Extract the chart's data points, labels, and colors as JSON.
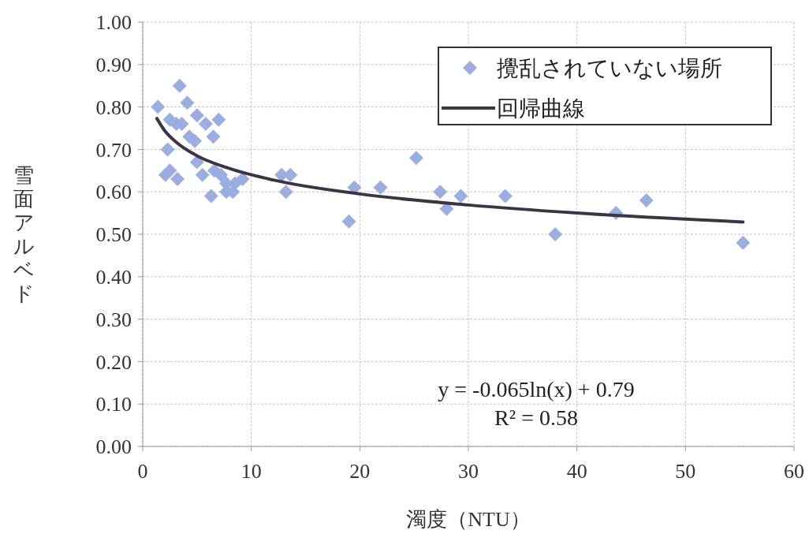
{
  "chart_data": {
    "type": "scatter",
    "xlabel": "濁度（NTU）",
    "ylabel": "雪面アルベド",
    "xlim": [
      0,
      60
    ],
    "xticks": [
      0,
      10,
      20,
      30,
      40,
      50,
      60
    ],
    "ylim": [
      0,
      1
    ],
    "yticks": [
      {
        "value": 0,
        "label": "0.00"
      },
      {
        "value": 0.1,
        "label": "0.10"
      },
      {
        "value": 0.2,
        "label": "0.20"
      },
      {
        "value": 0.3,
        "label": "0.30"
      },
      {
        "value": 0.4,
        "label": "0.40"
      },
      {
        "value": 0.5,
        "label": "0.50"
      },
      {
        "value": 0.6,
        "label": "0.60"
      },
      {
        "value": 0.7,
        "label": "0.70"
      },
      {
        "value": 0.8,
        "label": "0.80"
      },
      {
        "value": 0.9,
        "label": "0.90"
      },
      {
        "value": 1,
        "label": "1.00"
      }
    ],
    "grid": true,
    "legend": "top right",
    "series": [
      {
        "name": "攪乱されていない場所",
        "color": "#9aaee0",
        "marker": "diamond",
        "x": [
          1.4,
          3.4,
          4.1,
          2.5,
          3.1,
          3.6,
          5.0,
          5.8,
          6.5,
          7.0,
          2.3,
          4.3,
          4.8,
          5.0,
          2.5,
          2.1,
          3.2,
          5.5,
          6.6,
          7.2,
          7.7,
          8.5,
          9.2,
          6.3,
          7.7,
          8.3,
          12.8,
          13.6,
          13.2,
          19.5,
          19.0,
          21.9,
          25.2,
          27.4,
          28.0,
          29.3,
          33.4,
          38.0,
          43.6,
          46.4,
          55.3
        ],
        "values": [
          0.8,
          0.85,
          0.81,
          0.77,
          0.76,
          0.76,
          0.78,
          0.76,
          0.73,
          0.77,
          0.7,
          0.73,
          0.72,
          0.67,
          0.65,
          0.64,
          0.63,
          0.64,
          0.65,
          0.64,
          0.62,
          0.62,
          0.63,
          0.59,
          0.6,
          0.6,
          0.64,
          0.64,
          0.6,
          0.61,
          0.53,
          0.61,
          0.68,
          0.6,
          0.56,
          0.59,
          0.59,
          0.5,
          0.55,
          0.58,
          0.48
        ]
      },
      {
        "name": "回帰曲線",
        "type": "line",
        "color": "#3a3545",
        "marker": "none",
        "line_style": "solid",
        "x": [
          1.3,
          2,
          3,
          5,
          8,
          12,
          20,
          30,
          40,
          55.3
        ],
        "values": [
          0.773,
          0.745,
          0.719,
          0.685,
          0.655,
          0.628,
          0.595,
          0.569,
          0.55,
          0.529
        ]
      }
    ],
    "annotations": [
      "y = -0.065ln(x) + 0.79",
      "R² = 0.58"
    ]
  }
}
